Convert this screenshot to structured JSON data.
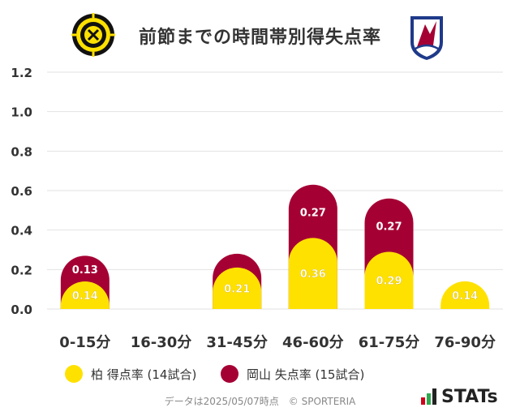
{
  "header": {
    "title": "前節までの時間帯別得失点率"
  },
  "logos": {
    "left": "kashiwa-reysol-crest-icon",
    "right": "fagiano-okayama-crest-icon",
    "left_lettering": "KASHIWA REYSOL",
    "right_lettering": "Fagiano"
  },
  "colors": {
    "kashiwa": "#FFE100",
    "okayama": "#A50034",
    "grid": "#e2e2e2",
    "axis_text": "#333333"
  },
  "chart_data": {
    "type": "bar",
    "stacked": true,
    "categories": [
      "0-15分",
      "16-30分",
      "31-45分",
      "46-60分",
      "61-75分",
      "76-90分"
    ],
    "series": [
      {
        "name": "柏 得点率 (14試合)",
        "color": "#FFE100",
        "values": [
          0.14,
          0,
          0.21,
          0.36,
          0.29,
          0.14
        ],
        "labels": [
          "0.14",
          "",
          "0.21",
          "0.36",
          "0.29",
          "0.14"
        ]
      },
      {
        "name": "岡山 失点率 (15試合)",
        "color": "#A50034",
        "values": [
          0.13,
          0,
          0.07,
          0.27,
          0.27,
          0
        ],
        "labels": [
          "0.13",
          "",
          "",
          "0.27",
          "0.27",
          ""
        ]
      }
    ],
    "yticks": [
      "0.0",
      "0.2",
      "0.4",
      "0.6",
      "0.8",
      "1.0",
      "1.2"
    ],
    "ylim": [
      0,
      1.2
    ],
    "grid": true,
    "legend_position": "bottom"
  },
  "legend": {
    "items": [
      {
        "label": "柏 得点率 (14試合)",
        "color": "#FFE100"
      },
      {
        "label": "岡山 失点率 (15試合)",
        "color": "#A50034"
      }
    ]
  },
  "footer": {
    "text": "データは2025/05/07時点　© SPORTERIA"
  },
  "brand": {
    "text": "STATs",
    "icon": "bar-stats-logo-icon"
  }
}
